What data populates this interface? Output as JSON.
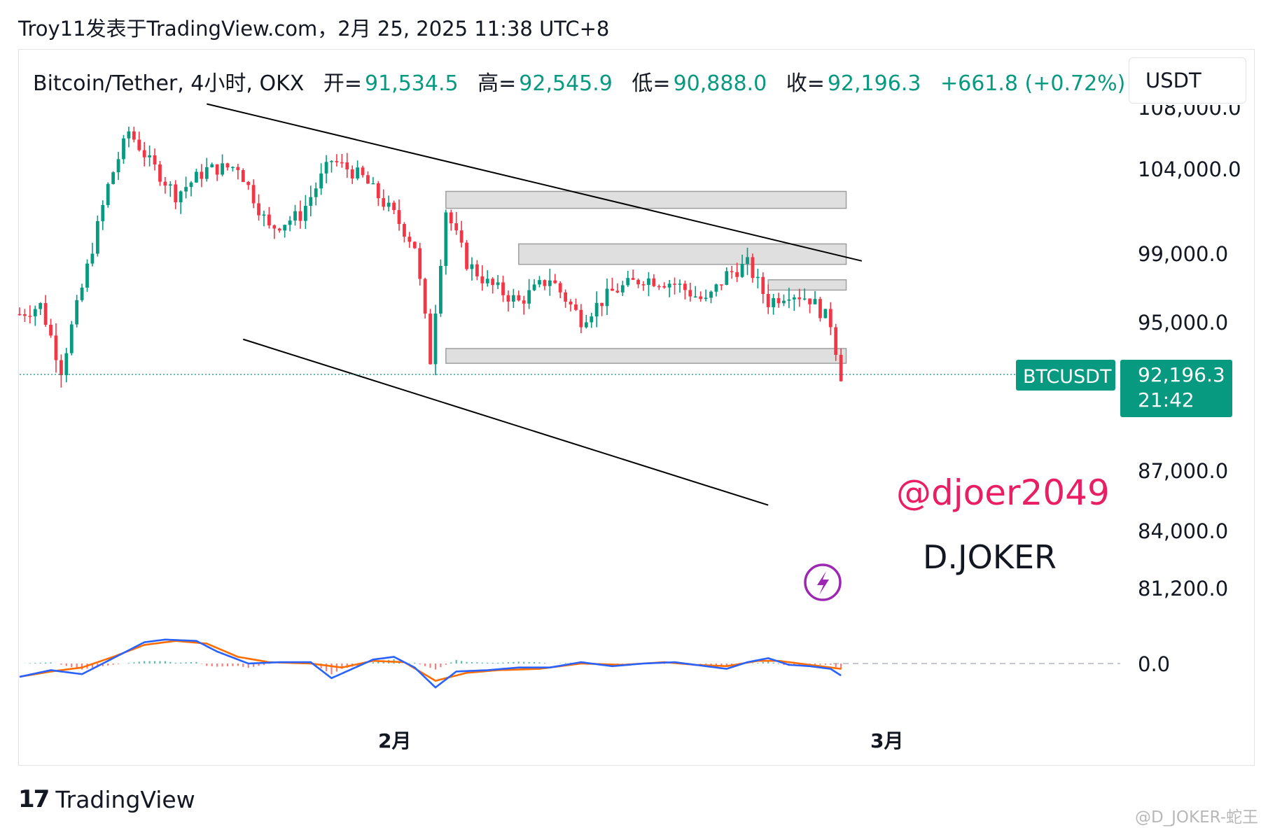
{
  "header": {
    "title": "Troy11发表于TradingView.com，2月 25, 2025 11:38 UTC+8"
  },
  "legend": {
    "symbol": "Bitcoin/Tether, 4小时, OKX",
    "open_label": "开=",
    "open": "91,534.5",
    "high_label": "高=",
    "high": "92,545.9",
    "low_label": "低=",
    "low": "90,888.0",
    "close_label": "收=",
    "close": "92,196.3",
    "change": "+661.8 (+0.72%)"
  },
  "currency_button": "USDT",
  "price_tag": {
    "symbol": "BTCUSDT",
    "price": "92,196.3",
    "countdown": "21:42"
  },
  "watermarks": {
    "handle": "@djoer2049",
    "name": "D.JOKER"
  },
  "footer": {
    "brand": "TradingView",
    "corner": "@D_JOKER-蛇王"
  },
  "colors": {
    "up": "#089981",
    "down": "#f23645",
    "macd_line": "#2962ff",
    "signal_line": "#ff6d00",
    "handle": "#e91e63",
    "bolt": "#9c27b0"
  },
  "chart_data": {
    "type": "candlestick",
    "timeframe": "4小时",
    "y_axis": {
      "ticks": [
        104000.0,
        99000.0,
        95000.0,
        87000.0,
        84000.0,
        81200.0
      ],
      "tick_labels": [
        "104,000.0",
        "99,000.0",
        "95,000.0",
        "87,000.0",
        "84,000.0",
        "81,200.0"
      ],
      "top_partial_label": "108,000.0"
    },
    "x_axis": {
      "tick_labels": [
        "2月",
        "3月"
      ]
    },
    "last_price": 92196.3,
    "price_path": [
      [
        0,
        95500
      ],
      [
        4,
        96000
      ],
      [
        8,
        92500
      ],
      [
        12,
        97000
      ],
      [
        17,
        103000
      ],
      [
        21,
        106500
      ],
      [
        25,
        104500
      ],
      [
        30,
        102500
      ],
      [
        36,
        104000
      ],
      [
        42,
        104200
      ],
      [
        48,
        100500
      ],
      [
        54,
        101300
      ],
      [
        60,
        104600
      ],
      [
        66,
        103500
      ],
      [
        72,
        101300
      ],
      [
        76,
        99500
      ],
      [
        79,
        93000
      ],
      [
        82,
        101600
      ],
      [
        86,
        98500
      ],
      [
        90,
        97300
      ],
      [
        96,
        96200
      ],
      [
        102,
        97600
      ],
      [
        108,
        95200
      ],
      [
        114,
        96800
      ],
      [
        120,
        97600
      ],
      [
        126,
        97300
      ],
      [
        132,
        96200
      ],
      [
        136,
        97800
      ],
      [
        140,
        98400
      ],
      [
        144,
        96200
      ],
      [
        148,
        96800
      ],
      [
        152,
        96400
      ],
      [
        156,
        95000
      ],
      [
        158,
        92200
      ]
    ],
    "trend_lines": [
      {
        "from": [
          36,
          108300
        ],
        "to": [
          162,
          98600
        ]
      },
      {
        "from": [
          43,
          94100
        ],
        "to": [
          144,
          85300
        ]
      }
    ],
    "zones": [
      {
        "x": [
          82,
          159
        ],
        "y": [
          101700,
          102700
        ]
      },
      {
        "x": [
          96,
          159
        ],
        "y": [
          98400,
          99600
        ]
      },
      {
        "x": [
          144,
          159
        ],
        "y": [
          96900,
          97500
        ]
      },
      {
        "x": [
          82,
          159
        ],
        "y": [
          92800,
          93600
        ]
      }
    ],
    "macd": {
      "zero_label": "0.0",
      "macd_line": [
        [
          0,
          -1.0
        ],
        [
          6,
          -0.5
        ],
        [
          12,
          -0.8
        ],
        [
          18,
          0.4
        ],
        [
          24,
          1.6
        ],
        [
          28,
          1.8
        ],
        [
          34,
          1.7
        ],
        [
          38,
          0.9
        ],
        [
          44,
          0.0
        ],
        [
          50,
          0.1
        ],
        [
          56,
          0.1
        ],
        [
          60,
          -1.1
        ],
        [
          64,
          -0.4
        ],
        [
          68,
          0.3
        ],
        [
          72,
          0.5
        ],
        [
          76,
          -0.3
        ],
        [
          80,
          -1.8
        ],
        [
          84,
          -0.6
        ],
        [
          90,
          -0.5
        ],
        [
          96,
          -0.3
        ],
        [
          102,
          -0.3
        ],
        [
          108,
          0.1
        ],
        [
          114,
          -0.2
        ],
        [
          120,
          0.0
        ],
        [
          126,
          0.1
        ],
        [
          132,
          -0.2
        ],
        [
          136,
          -0.4
        ],
        [
          140,
          0.1
        ],
        [
          144,
          0.4
        ],
        [
          148,
          -0.1
        ],
        [
          152,
          -0.2
        ],
        [
          156,
          -0.4
        ],
        [
          158,
          -0.9
        ]
      ],
      "signal_line": [
        [
          0,
          -1.0
        ],
        [
          6,
          -0.6
        ],
        [
          12,
          -0.3
        ],
        [
          18,
          0.5
        ],
        [
          24,
          1.4
        ],
        [
          30,
          1.7
        ],
        [
          36,
          1.5
        ],
        [
          42,
          0.5
        ],
        [
          48,
          0.1
        ],
        [
          56,
          0.0
        ],
        [
          62,
          -0.3
        ],
        [
          68,
          0.2
        ],
        [
          74,
          0.1
        ],
        [
          80,
          -1.3
        ],
        [
          86,
          -0.7
        ],
        [
          92,
          -0.5
        ],
        [
          100,
          -0.4
        ],
        [
          108,
          0.0
        ],
        [
          116,
          -0.1
        ],
        [
          124,
          0.1
        ],
        [
          130,
          -0.1
        ],
        [
          136,
          -0.2
        ],
        [
          142,
          0.2
        ],
        [
          146,
          0.2
        ],
        [
          152,
          -0.1
        ],
        [
          158,
          -0.4
        ]
      ]
    }
  }
}
